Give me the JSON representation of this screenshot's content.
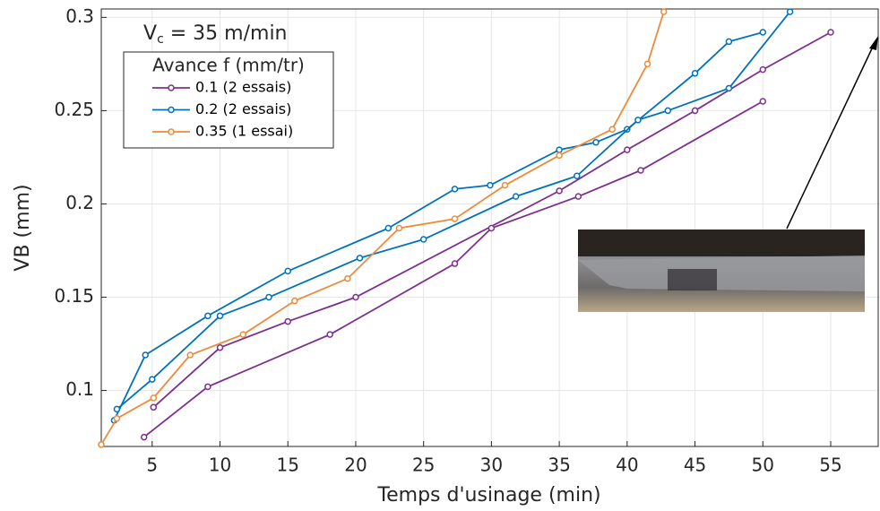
{
  "chart_data": {
    "type": "line",
    "xlabel": "Temps d'usinage (min)",
    "ylabel": "VB (mm)",
    "annotation": {
      "main": "V",
      "sub": "c",
      "rest": " = 35 m/min"
    },
    "legend_title": "Avance f (mm/tr)",
    "grid": true,
    "legend": "upper left",
    "xlim": [
      1.25,
      58.5
    ],
    "ylim": [
      0.07,
      0.3045
    ],
    "xticks": [
      5,
      10,
      15,
      20,
      25,
      30,
      35,
      40,
      45,
      50,
      55
    ],
    "yticks": [
      0.1,
      0.15,
      0.2,
      0.25,
      0.3
    ],
    "series": [
      {
        "name": "0.1 (2 essais)",
        "color": "#7e2f8e",
        "runs": [
          {
            "x": [
              5.1,
              10,
              15,
              20,
              35,
              40,
              45,
              50,
              55
            ],
            "values": [
              0.091,
              0.123,
              0.137,
              0.15,
              0.207,
              0.229,
              0.25,
              0.272,
              0.292
            ]
          },
          {
            "x": [
              4.4,
              9.1,
              18.1,
              27.3,
              30,
              36.4,
              41,
              50
            ],
            "values": [
              0.075,
              0.102,
              0.13,
              0.168,
              0.187,
              0.204,
              0.218,
              0.255
            ]
          }
        ]
      },
      {
        "name": "0.2 (2 essais)",
        "color": "#0072bd",
        "runs": [
          {
            "x": [
              2.2,
              4.5,
              9.1,
              15,
              22.4,
              27.3,
              29.9,
              35,
              37.7,
              40,
              45,
              47.5,
              50
            ],
            "values": [
              0.084,
              0.119,
              0.14,
              0.164,
              0.187,
              0.208,
              0.21,
              0.229,
              0.233,
              0.24,
              0.27,
              0.287,
              0.292
            ]
          },
          {
            "x": [
              2.4,
              5,
              10,
              13.6,
              20.3,
              25,
              31.8,
              36.3,
              40.8,
              43,
              47.5,
              52
            ],
            "values": [
              0.09,
              0.106,
              0.14,
              0.15,
              0.171,
              0.181,
              0.204,
              0.215,
              0.245,
              0.25,
              0.262,
              0.303
            ]
          }
        ]
      },
      {
        "name": "0.35 (1 essai)",
        "color": "#ed8b3a",
        "runs": [
          {
            "x": [
              1.25,
              2.4,
              5.1,
              7.8,
              11.7,
              15.5,
              19.4,
              23.2,
              27.3,
              31,
              35,
              38.9,
              41.5,
              42.7
            ],
            "values": [
              0.071,
              0.085,
              0.096,
              0.119,
              0.13,
              0.148,
              0.16,
              0.187,
              0.192,
              0.21,
              0.226,
              0.24,
              0.275,
              0.303
            ]
          }
        ]
      }
    ]
  }
}
